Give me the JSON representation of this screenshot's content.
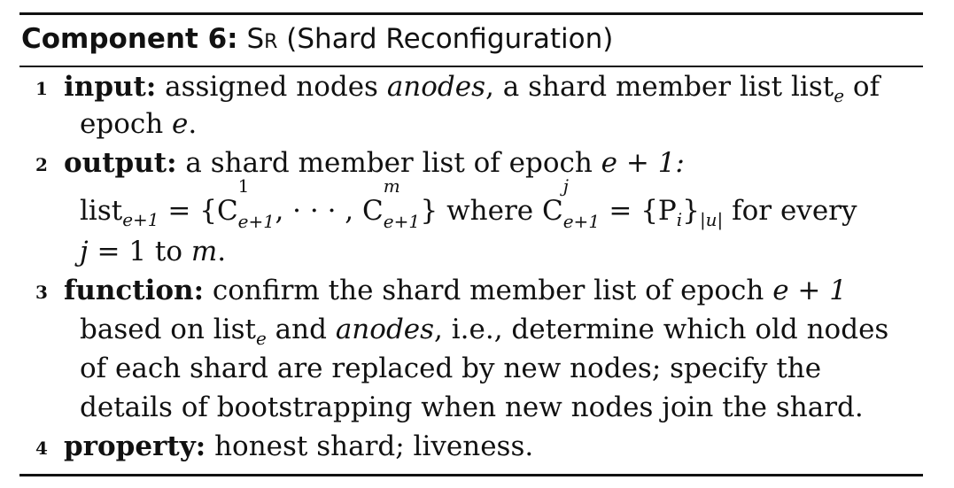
{
  "component": {
    "label": "Component 6:",
    "name": "Sr",
    "description": "(Shard Reconfiguration)"
  },
  "steps": [
    {
      "number": "1",
      "keyword": "input:",
      "text_a": "assigned nodes",
      "text_anodes": "anodes",
      "text_b": ", a shard member list list",
      "text_sub_e": "e",
      "text_c": "of",
      "text_line2a": "epoch",
      "text_line2_e": "e",
      "text_line2b": "."
    },
    {
      "number": "2",
      "keyword": "output:",
      "text_a": "a shard member list of epoch",
      "text_math": "e + 1:",
      "formula_list": "list",
      "formula_sub": "e+1",
      "formula_eq": "= {C",
      "c1_sup": "1",
      "c1_sub": "e+1",
      "formula_mid": ", · · · , C",
      "cm_sup": "m",
      "cm_sub": "e+1",
      "formula_close": "}",
      "formula_where": "where C",
      "cj_sup": "j",
      "cj_sub": "e+1",
      "formula_eq2": "= {P",
      "pi_sub": "i",
      "formula_u": "}",
      "u_sub": "|u|",
      "formula_for": "for every",
      "formula_line3a": "j",
      "formula_line3b": "= 1 to",
      "formula_line3c": "m",
      "formula_line3d": "."
    },
    {
      "number": "3",
      "keyword": "function:",
      "line1": "confirm the shard member list of epoch",
      "line1_math": "e + 1",
      "line2a": "based on list",
      "line2_sub": "e",
      "line2b": "and",
      "line2_anodes": "anodes",
      "line2c": ", i.e., determine which old nodes",
      "line3": "of each shard are replaced by new nodes; specify the",
      "line4": "details of bootstrapping when new nodes join the shard."
    },
    {
      "number": "4",
      "keyword": "property:",
      "text": "honest shard; liveness."
    }
  ]
}
